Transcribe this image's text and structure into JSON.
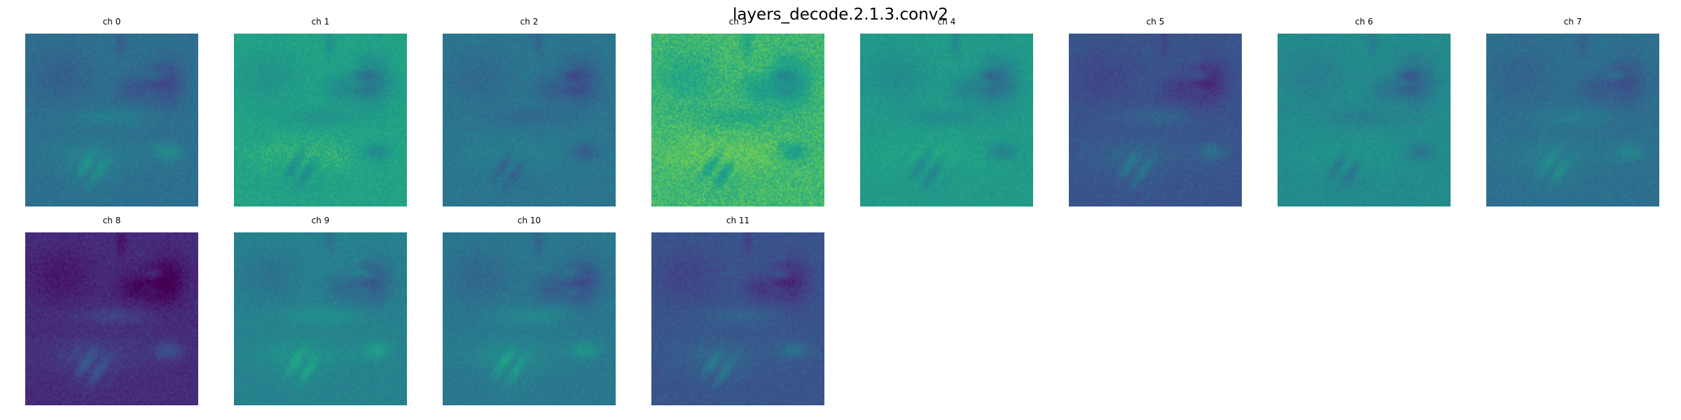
{
  "chart_data": {
    "type": "heatmap",
    "title": "layers_decode.2.1.3.conv2",
    "colormap": "viridis",
    "layout": {
      "rows": 2,
      "cols": 8
    },
    "panels": [
      {
        "label": "ch 0",
        "mean": 0.46,
        "contrast": 0.24,
        "detail_sign": 1
      },
      {
        "label": "ch 1",
        "mean": 0.72,
        "contrast": 0.24,
        "detail_sign": -1
      },
      {
        "label": "ch 2",
        "mean": 0.49,
        "contrast": 0.2,
        "detail_sign": -1
      },
      {
        "label": "ch 3",
        "mean": 0.8,
        "contrast": 0.2,
        "detail_sign": -1
      },
      {
        "label": "ch 4",
        "mean": 0.68,
        "contrast": 0.24,
        "detail_sign": -1
      },
      {
        "label": "ch 5",
        "mean": 0.33,
        "contrast": 0.22,
        "detail_sign": 1
      },
      {
        "label": "ch 6",
        "mean": 0.6,
        "contrast": 0.22,
        "detail_sign": -1
      },
      {
        "label": "ch 7",
        "mean": 0.46,
        "contrast": 0.2,
        "detail_sign": 1
      },
      {
        "label": "ch 8",
        "mean": 0.16,
        "contrast": 0.26,
        "detail_sign": 1
      },
      {
        "label": "ch 9",
        "mean": 0.55,
        "contrast": 0.24,
        "detail_sign": 1
      },
      {
        "label": "ch 10",
        "mean": 0.5,
        "contrast": 0.26,
        "detail_sign": 1
      },
      {
        "label": "ch 11",
        "mean": 0.33,
        "contrast": 0.24,
        "detail_sign": 1
      }
    ]
  }
}
